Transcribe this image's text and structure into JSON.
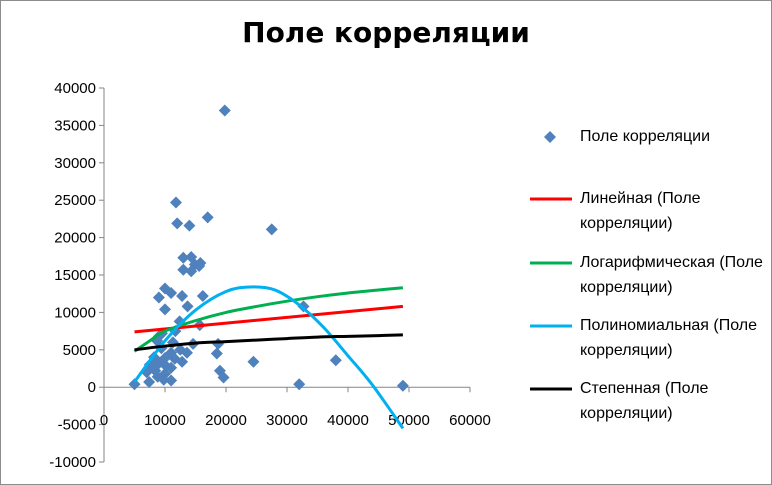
{
  "chart_data": {
    "type": "scatter",
    "title": "Поле корреляции",
    "xlabel": "",
    "ylabel": "",
    "xlim": [
      0,
      60000
    ],
    "ylim": [
      -10000,
      40000
    ],
    "x_ticks": [
      "0",
      "10000",
      "20000",
      "30000",
      "40000",
      "50000",
      "60000"
    ],
    "y_ticks": [
      "40000",
      "35000",
      "30000",
      "25000",
      "20000",
      "15000",
      "10000",
      "5000",
      "0",
      "-5000",
      "-10000"
    ],
    "grid": false,
    "legend_position": "right",
    "series": [
      {
        "name": "Поле корреляции",
        "kind": "scatter",
        "color": "#4f81bd",
        "marker": "diamond",
        "points": [
          [
            19800,
            37000
          ],
          [
            11800,
            24700
          ],
          [
            17000,
            22700
          ],
          [
            12000,
            21900
          ],
          [
            14000,
            21600
          ],
          [
            27500,
            21100
          ],
          [
            13000,
            17300
          ],
          [
            14300,
            17400
          ],
          [
            15800,
            16600
          ],
          [
            14900,
            16400
          ],
          [
            13000,
            15700
          ],
          [
            14300,
            15500
          ],
          [
            15600,
            16200
          ],
          [
            16200,
            12200
          ],
          [
            12800,
            12200
          ],
          [
            10000,
            13200
          ],
          [
            9000,
            12000
          ],
          [
            11000,
            12600
          ],
          [
            10000,
            10400
          ],
          [
            13700,
            10800
          ],
          [
            32700,
            10800
          ],
          [
            12400,
            8800
          ],
          [
            15700,
            8300
          ],
          [
            11700,
            7500
          ],
          [
            9500,
            7200
          ],
          [
            9000,
            6800
          ],
          [
            8700,
            6200
          ],
          [
            11300,
            6000
          ],
          [
            14600,
            5800
          ],
          [
            18700,
            5800
          ],
          [
            9400,
            5200
          ],
          [
            12500,
            5000
          ],
          [
            11000,
            4600
          ],
          [
            13600,
            4600
          ],
          [
            18500,
            4500
          ],
          [
            8200,
            4000
          ],
          [
            10000,
            3900
          ],
          [
            11600,
            3800
          ],
          [
            12800,
            3400
          ],
          [
            24500,
            3400
          ],
          [
            38000,
            3600
          ],
          [
            7500,
            3000
          ],
          [
            9000,
            3200
          ],
          [
            10200,
            2800
          ],
          [
            11000,
            2600
          ],
          [
            8400,
            2200
          ],
          [
            10000,
            1800
          ],
          [
            19000,
            2200
          ],
          [
            7000,
            2000
          ],
          [
            8800,
            1400
          ],
          [
            9800,
            1000
          ],
          [
            11000,
            900
          ],
          [
            7400,
            700
          ],
          [
            19600,
            1300
          ],
          [
            5000,
            400
          ],
          [
            32000,
            400
          ],
          [
            49000,
            200
          ]
        ]
      },
      {
        "name": "Линейная (Поле корреляции)",
        "kind": "line",
        "color": "#ff0000",
        "points": [
          [
            5000,
            7400
          ],
          [
            49000,
            10800
          ]
        ]
      },
      {
        "name": "Логарифмическая (Поле корреляции)",
        "kind": "line",
        "color": "#00b050",
        "points": [
          [
            5000,
            4800
          ],
          [
            7500,
            6200
          ],
          [
            10000,
            7500
          ],
          [
            15000,
            8900
          ],
          [
            20000,
            10000
          ],
          [
            25000,
            10800
          ],
          [
            30000,
            11500
          ],
          [
            35000,
            12100
          ],
          [
            40000,
            12600
          ],
          [
            45000,
            13000
          ],
          [
            49000,
            13300
          ]
        ]
      },
      {
        "name": "Полиномиальная (Поле корреляции)",
        "kind": "line",
        "color": "#00b0f0",
        "points": [
          [
            5000,
            700
          ],
          [
            10000,
            6200
          ],
          [
            15000,
            10300
          ],
          [
            20000,
            12800
          ],
          [
            24000,
            13400
          ],
          [
            28000,
            13000
          ],
          [
            32000,
            11000
          ],
          [
            36000,
            8000
          ],
          [
            40000,
            4200
          ],
          [
            44000,
            300
          ],
          [
            49000,
            -5500
          ]
        ]
      },
      {
        "name": "Степенная (Поле корреляции)",
        "kind": "line",
        "color": "#000000",
        "points": [
          [
            5000,
            5000
          ],
          [
            10000,
            5500
          ],
          [
            15000,
            5900
          ],
          [
            20000,
            6100
          ],
          [
            25000,
            6300
          ],
          [
            30000,
            6500
          ],
          [
            35000,
            6700
          ],
          [
            40000,
            6800
          ],
          [
            45000,
            6900
          ],
          [
            49000,
            7000
          ]
        ]
      }
    ]
  }
}
